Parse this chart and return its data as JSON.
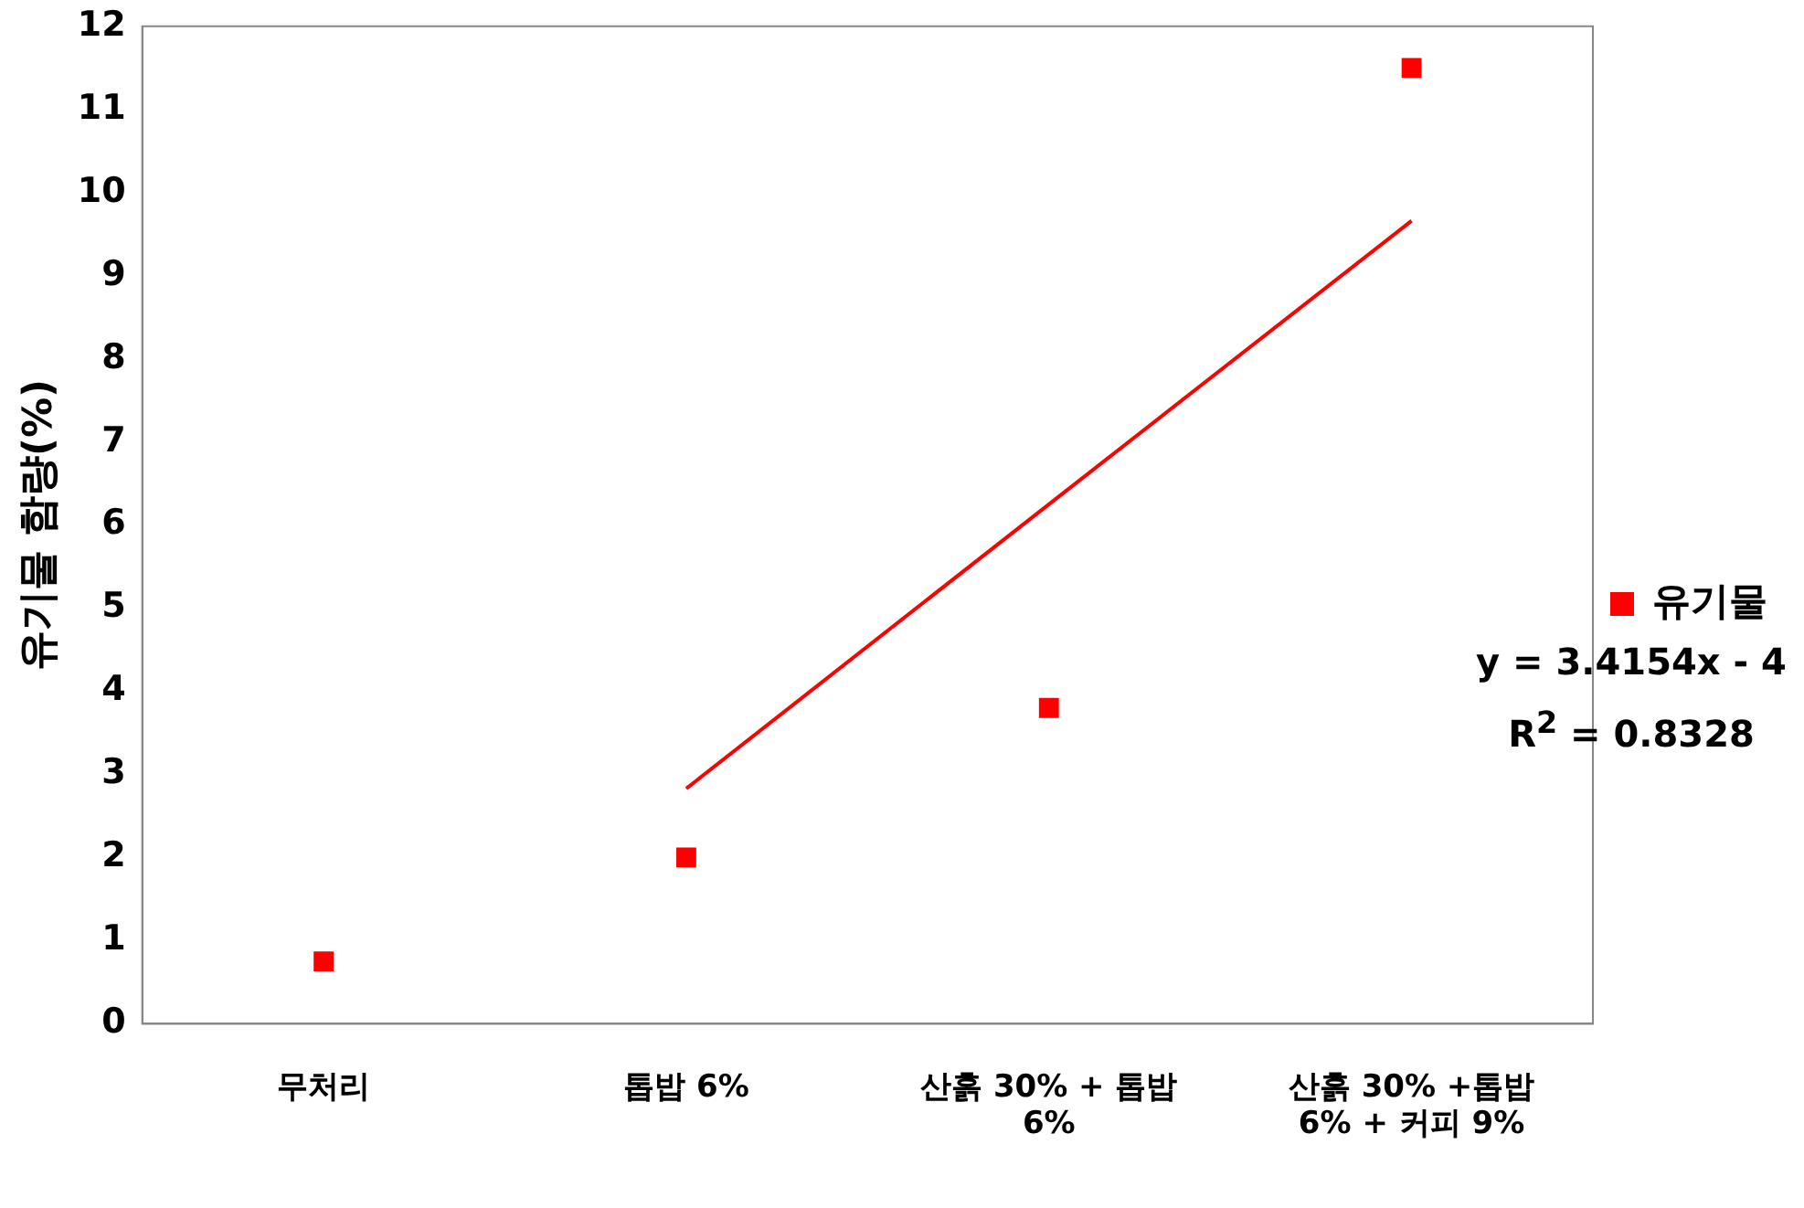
{
  "chart_data": {
    "type": "scatter",
    "ylabel": "유기물 함량(%)",
    "categories": [
      "무처리",
      "톱밥 6%",
      "산흙 30% + 톱밥 6%",
      "산흙 30% +톱밥 6% + 커피 9%"
    ],
    "series": [
      {
        "name": "유기물",
        "color": "#ff0000",
        "values": [
          0.75,
          2.0,
          3.8,
          11.5
        ]
      },
      {
        "type": "line",
        "color": "#ff0000",
        "values": [
          null,
          2.83,
          6.25,
          9.66
        ],
        "marker": "none"
      }
    ],
    "ylim": [
      0,
      12
    ],
    "yticks": [
      0,
      1,
      2,
      3,
      4,
      5,
      6,
      7,
      8,
      9,
      10,
      11,
      12
    ],
    "grid": false,
    "legend": "right",
    "marker": "square",
    "annotations": [
      "y = 3.4154x - 4",
      "R$^{2}$ = 0.8328"
    ]
  }
}
